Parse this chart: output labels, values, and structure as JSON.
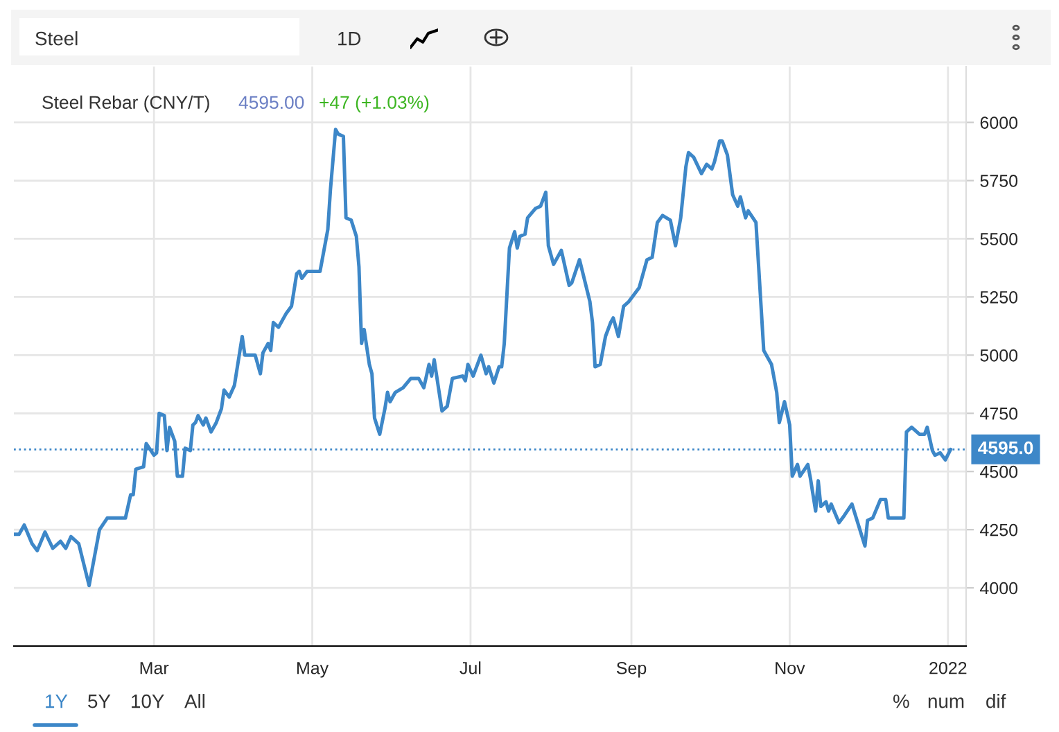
{
  "chart_data": {
    "type": "line",
    "title": "Steel Rebar (CNY/T)",
    "annotations": [
      "4595.00",
      "+47 (+1.03%)",
      "Steel",
      "1D",
      "1Y",
      "5Y",
      "10Y",
      "All",
      "%",
      "num",
      "dif"
    ],
    "x": [
      "2021-01-06",
      "2021-01-08",
      "2021-01-10",
      "2021-01-13",
      "2021-01-15",
      "2021-01-18",
      "2021-01-21",
      "2021-01-24",
      "2021-01-26",
      "2021-01-28",
      "2021-01-31",
      "2021-02-02",
      "2021-02-04",
      "2021-02-06",
      "2021-02-08",
      "2021-02-11",
      "2021-02-18",
      "2021-02-20",
      "2021-02-21",
      "2021-02-22",
      "2021-02-25",
      "2021-02-26",
      "2021-03-01",
      "2021-03-02",
      "2021-03-03",
      "2021-03-05",
      "2021-03-06",
      "2021-03-07",
      "2021-03-09",
      "2021-03-10",
      "2021-03-12",
      "2021-03-13",
      "2021-03-15",
      "2021-03-16",
      "2021-03-17",
      "2021-03-18",
      "2021-03-20",
      "2021-03-21",
      "2021-03-23",
      "2021-03-25",
      "2021-03-27",
      "2021-03-28",
      "2021-03-30",
      "2021-04-01",
      "2021-04-04",
      "2021-04-05",
      "2021-04-09",
      "2021-04-11",
      "2021-04-12",
      "2021-04-14",
      "2021-04-15",
      "2021-04-16",
      "2021-04-18",
      "2021-04-21",
      "2021-04-23",
      "2021-04-25",
      "2021-04-26",
      "2021-04-27",
      "2021-04-29",
      "2021-05-04",
      "2021-05-07",
      "2021-05-08",
      "2021-05-10",
      "2021-05-11",
      "2021-05-13",
      "2021-05-14",
      "2021-05-16",
      "2021-05-18",
      "2021-05-19",
      "2021-05-20",
      "2021-05-21",
      "2021-05-23",
      "2021-05-24",
      "2021-05-25",
      "2021-05-27",
      "2021-05-29",
      "2021-05-30",
      "2021-05-31",
      "2021-06-02",
      "2021-06-05",
      "2021-06-08",
      "2021-06-11",
      "2021-06-13",
      "2021-06-15",
      "2021-06-16",
      "2021-06-17",
      "2021-06-20",
      "2021-06-22",
      "2021-06-24",
      "2021-06-28",
      "2021-06-29",
      "2021-06-30",
      "2021-07-02",
      "2021-07-05",
      "2021-07-07",
      "2021-07-08",
      "2021-07-10",
      "2021-07-12",
      "2021-07-13",
      "2021-07-14",
      "2021-07-16",
      "2021-07-18",
      "2021-07-19",
      "2021-07-20",
      "2021-07-22",
      "2021-07-23",
      "2021-07-26",
      "2021-07-28",
      "2021-07-30",
      "2021-07-31",
      "2021-08-02",
      "2021-08-05",
      "2021-08-08",
      "2021-08-09",
      "2021-08-12",
      "2021-08-14",
      "2021-08-16",
      "2021-08-17",
      "2021-08-18",
      "2021-08-20",
      "2021-08-22",
      "2021-08-24",
      "2021-08-25",
      "2021-08-27",
      "2021-08-29",
      "2021-08-31",
      "2021-09-04",
      "2021-09-07",
      "2021-09-09",
      "2021-09-11",
      "2021-09-13",
      "2021-09-16",
      "2021-09-18",
      "2021-09-20",
      "2021-09-22",
      "2021-09-23",
      "2021-09-25",
      "2021-09-28",
      "2021-09-30",
      "2021-10-02",
      "2021-10-03",
      "2021-10-05",
      "2021-10-06",
      "2021-10-08",
      "2021-10-10",
      "2021-10-12",
      "2021-10-13",
      "2021-10-15",
      "2021-10-16",
      "2021-10-19",
      "2021-10-22",
      "2021-10-25",
      "2021-10-27",
      "2021-10-28",
      "2021-10-30",
      "2021-11-01",
      "2021-11-02",
      "2021-11-04",
      "2021-11-05",
      "2021-11-08",
      "2021-11-09",
      "2021-11-11",
      "2021-11-12",
      "2021-11-13",
      "2021-11-15",
      "2021-11-16",
      "2021-11-17",
      "2021-11-20",
      "2021-11-22",
      "2021-11-25",
      "2021-11-30",
      "2021-12-01",
      "2021-12-03",
      "2021-12-06",
      "2021-12-08",
      "2021-12-09",
      "2021-12-15",
      "2021-12-16",
      "2021-12-18",
      "2021-12-21",
      "2021-12-23",
      "2021-12-24",
      "2021-12-26",
      "2021-12-27",
      "2021-12-29",
      "2021-12-31",
      "2022-01-02"
    ],
    "values": [
      4230,
      4230,
      4270,
      4190,
      4160,
      4240,
      4170,
      4200,
      4170,
      4220,
      4190,
      4100,
      4010,
      4130,
      4250,
      4300,
      4300,
      4400,
      4400,
      4510,
      4520,
      4620,
      4570,
      4580,
      4750,
      4740,
      4590,
      4690,
      4630,
      4480,
      4480,
      4600,
      4590,
      4700,
      4710,
      4740,
      4700,
      4730,
      4670,
      4710,
      4770,
      4850,
      4820,
      4870,
      5080,
      5000,
      5000,
      4920,
      5010,
      5050,
      5020,
      5140,
      5120,
      5180,
      5210,
      5350,
      5360,
      5330,
      5360,
      5360,
      5540,
      5710,
      5970,
      5950,
      5940,
      5590,
      5580,
      5510,
      5380,
      5050,
      5110,
      4960,
      4920,
      4730,
      4660,
      4770,
      4840,
      4800,
      4840,
      4860,
      4900,
      4900,
      4860,
      4960,
      4910,
      4980,
      4760,
      4780,
      4900,
      4910,
      4890,
      4960,
      4910,
      5000,
      4920,
      4950,
      4880,
      4950,
      4950,
      5050,
      5460,
      5530,
      5460,
      5510,
      5520,
      5590,
      5630,
      5640,
      5700,
      5470,
      5390,
      5450,
      5300,
      5310,
      5410,
      5320,
      5230,
      5140,
      4950,
      4960,
      5080,
      5140,
      5160,
      5080,
      5210,
      5230,
      5290,
      5410,
      5420,
      5570,
      5600,
      5580,
      5470,
      5590,
      5810,
      5870,
      5850,
      5780,
      5820,
      5800,
      5830,
      5920,
      5920,
      5860,
      5690,
      5640,
      5680,
      5590,
      5620,
      5570,
      5020,
      4960,
      4840,
      4710,
      4800,
      4700,
      4480,
      4530,
      4480,
      4530,
      4470,
      4330,
      4460,
      4350,
      4370,
      4330,
      4360,
      4280,
      4310,
      4360,
      4180,
      4290,
      4300,
      4380,
      4380,
      4300,
      4300,
      4670,
      4690,
      4660,
      4660,
      4690,
      4590,
      4570,
      4580,
      4550,
      4595
    ],
    "color": "#3d87c8",
    "xlim": [
      "2021-01-06",
      "2022-01-08"
    ],
    "xticks": [
      {
        "value": "2021-03-01",
        "label": "Mar"
      },
      {
        "value": "2021-05-01",
        "label": "May"
      },
      {
        "value": "2021-07-01",
        "label": "Jul"
      },
      {
        "value": "2021-09-01",
        "label": "Sep"
      },
      {
        "value": "2021-11-01",
        "label": "Nov"
      },
      {
        "value": "2022-01-01",
        "label": "2022"
      }
    ],
    "ylim": [
      3750,
      6240
    ],
    "yticks": [
      4000,
      4250,
      4500,
      4750,
      5000,
      5250,
      5500,
      5750,
      6000
    ],
    "ref_lines": [
      {
        "axis": "y",
        "value": 4595,
        "label": "4595.0",
        "color": "#3d87c8",
        "line_style": "dotted"
      }
    ],
    "grid": true,
    "marker": "none",
    "line_style": "solid"
  }
}
